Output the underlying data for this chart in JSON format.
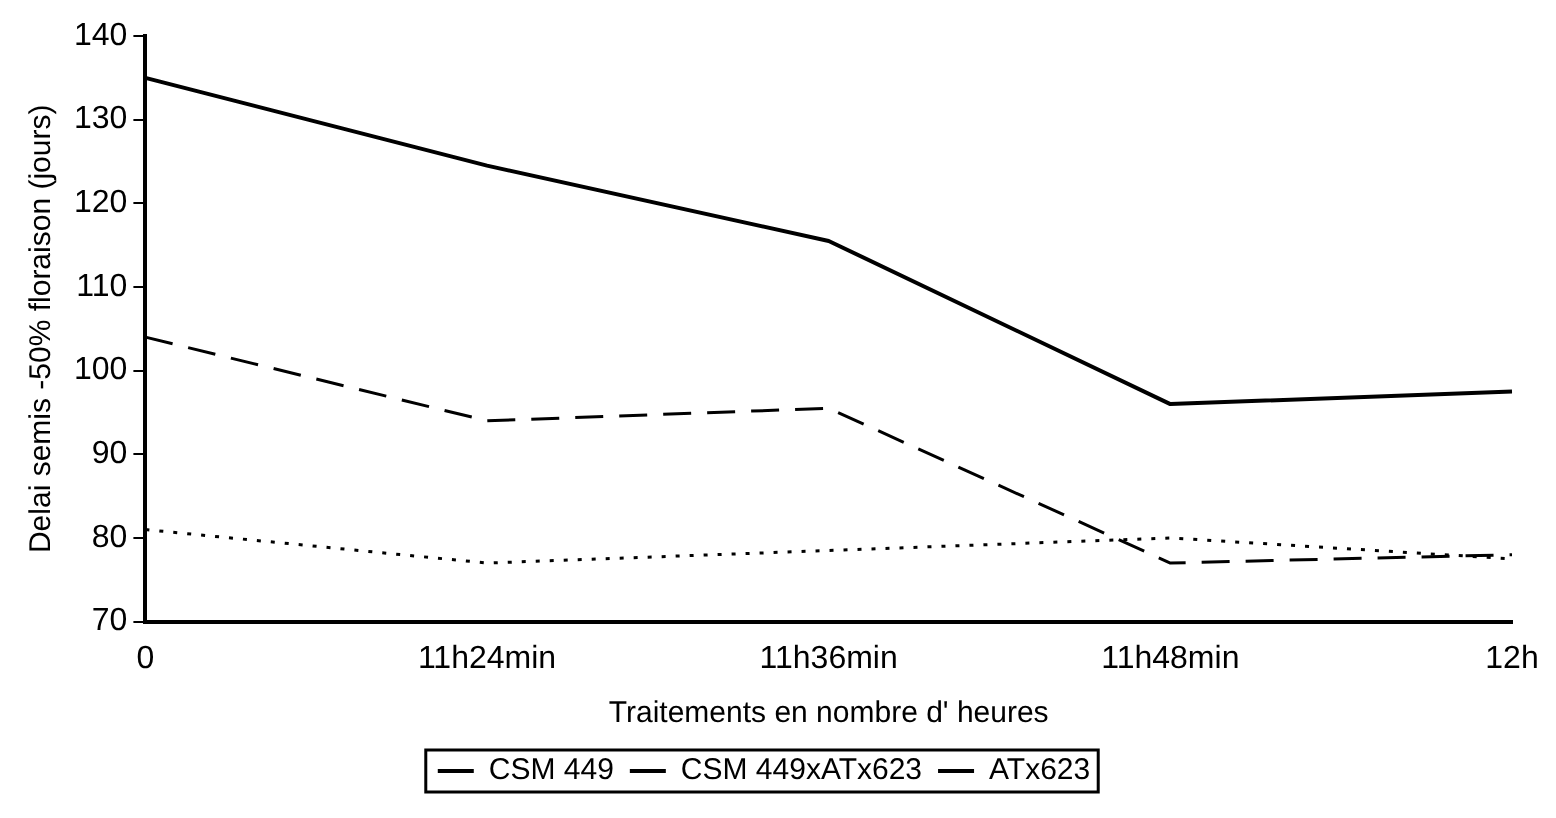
{
  "chart_data": {
    "type": "line",
    "xlabel": "Traitements en nombre d' heures",
    "ylabel": "Delai semis -50% floraison (jours)",
    "categories": [
      "0",
      "11h24min",
      "11h36min",
      "11h48min",
      "12h"
    ],
    "series": [
      {
        "name": "CSM 449",
        "color": "#000000",
        "line_style": "solid",
        "values": [
          135,
          124.5,
          115.5,
          96,
          97.5
        ]
      },
      {
        "name": "CSM 449xATx623",
        "color": "#000000",
        "line_style": "dashed",
        "values": [
          104,
          94,
          95.5,
          77,
          78
        ]
      },
      {
        "name": "ATx623",
        "color": "#000000",
        "line_style": "dotted",
        "values": [
          81,
          77,
          78.5,
          80,
          77.5
        ]
      }
    ],
    "ylim": [
      70,
      140
    ],
    "yticks": [
      70,
      80,
      90,
      100,
      110,
      120,
      130,
      140
    ],
    "grid": false,
    "legend": "bottom",
    "marker": "none"
  }
}
